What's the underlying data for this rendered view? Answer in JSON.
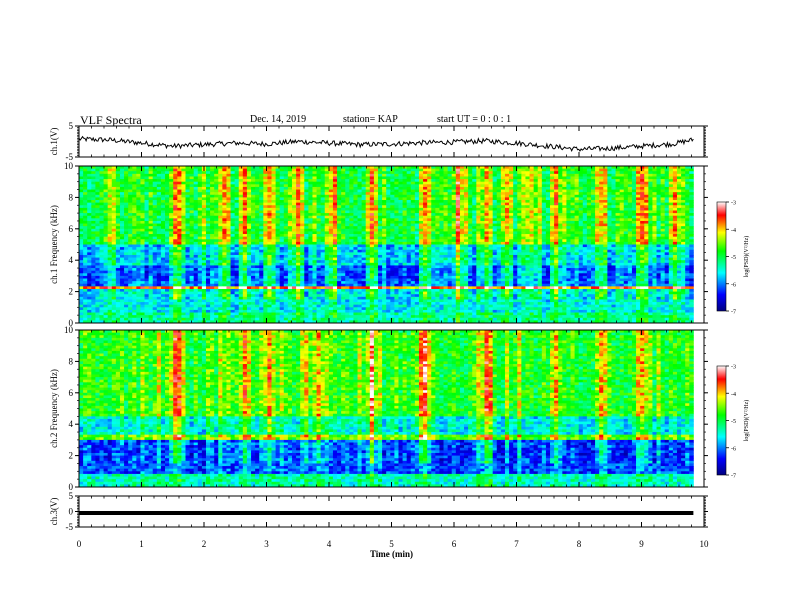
{
  "header": {
    "title": "VLF Spectra",
    "date": "Dec. 14, 2019",
    "station": "station= KAP",
    "start": "start  UT =   0 : 0  : 1"
  },
  "chart_data": [
    {
      "type": "line",
      "panel": "ch1-waveform",
      "ylabel": "ch.1(V)",
      "ylim": [
        -5,
        5
      ],
      "yticks": [
        "5",
        "-5"
      ],
      "xlim": [
        0,
        10
      ],
      "x": [
        0,
        0.5,
        1,
        1.5,
        2,
        2.5,
        3,
        3.5,
        4,
        4.5,
        5,
        5.5,
        6,
        6.5,
        7,
        7.5,
        8,
        8.5,
        9,
        9.5,
        9.83
      ],
      "values": [
        0.8,
        0.5,
        -0.5,
        -1.5,
        -1.0,
        -0.5,
        -0.8,
        0.0,
        -0.5,
        -1.0,
        -0.8,
        -0.4,
        -0.2,
        0.2,
        -0.5,
        -1.5,
        -2.5,
        -2.2,
        -1.5,
        -0.8,
        0.6
      ],
      "color": "#000000"
    },
    {
      "type": "heatmap",
      "panel": "ch1-spectrogram",
      "ylabel": "ch.1  Frequency  (kHz)",
      "ylim": [
        0,
        10
      ],
      "yticks": [
        "0",
        "2",
        "4",
        "6",
        "8",
        "10"
      ],
      "xlim": [
        0,
        10
      ],
      "data_xmax": 9.83,
      "colorbar": {
        "label": "log(PSD)(V²/Hz)",
        "range": [
          -7,
          -3
        ],
        "ticks": [
          "-3",
          "-4",
          "-5",
          "-6",
          "-7"
        ]
      },
      "bands_khz": [
        {
          "from": 0,
          "to": 0.6,
          "level": -5.3
        },
        {
          "from": 0.6,
          "to": 2.2,
          "level": -5.6
        },
        {
          "from": 2.2,
          "to": 2.4,
          "level": -3.8
        },
        {
          "from": 2.4,
          "to": 3.6,
          "level": -6.1
        },
        {
          "from": 3.6,
          "to": 5.0,
          "level": -5.7
        },
        {
          "from": 5.0,
          "to": 10.0,
          "level": -4.9
        }
      ],
      "bright_times_min": [
        1.5,
        1.55,
        1.6,
        2.3,
        2.6,
        3.0,
        3.5,
        4.0,
        4.65,
        5.5,
        6.0,
        6.5,
        6.8,
        7.6,
        8.3,
        8.35,
        9.0,
        9.5
      ]
    },
    {
      "type": "heatmap",
      "panel": "ch2-spectrogram",
      "ylabel": "ch.2  Frequency  (kHz)",
      "ylim": [
        0,
        10
      ],
      "yticks": [
        "0",
        "2",
        "4",
        "6",
        "8",
        "10"
      ],
      "xlim": [
        0,
        10
      ],
      "data_xmax": 9.83,
      "colorbar": {
        "label": "log(PSD)(V²/Hz)",
        "range": [
          -7,
          -3
        ],
        "ticks": [
          "-3",
          "-4",
          "-5",
          "-6",
          "-7"
        ]
      },
      "bands_khz": [
        {
          "from": 0,
          "to": 0.8,
          "level": -5.4
        },
        {
          "from": 0.8,
          "to": 3.0,
          "level": -6.2
        },
        {
          "from": 3.0,
          "to": 3.3,
          "level": -4.6
        },
        {
          "from": 3.3,
          "to": 4.5,
          "level": -5.5
        },
        {
          "from": 4.5,
          "to": 10.0,
          "level": -4.8
        }
      ],
      "bright_times_min": [
        1.5,
        1.6,
        2.6,
        3.0,
        3.8,
        4.65,
        5.5,
        6.5,
        7.6,
        8.3,
        9.0
      ]
    },
    {
      "type": "line",
      "panel": "ch3-waveform",
      "ylabel": "ch.3(V)",
      "ylim": [
        -5,
        5
      ],
      "yticks": [
        "5",
        "0",
        "-5"
      ],
      "xlim": [
        0,
        10
      ],
      "x": [
        0,
        9.83
      ],
      "values": [
        -0.5,
        -0.5
      ],
      "color": "#000000",
      "xlabel": "Time  (min)",
      "xticks": [
        "0",
        "1",
        "2",
        "3",
        "4",
        "5",
        "6",
        "7",
        "8",
        "9",
        "10"
      ]
    }
  ]
}
